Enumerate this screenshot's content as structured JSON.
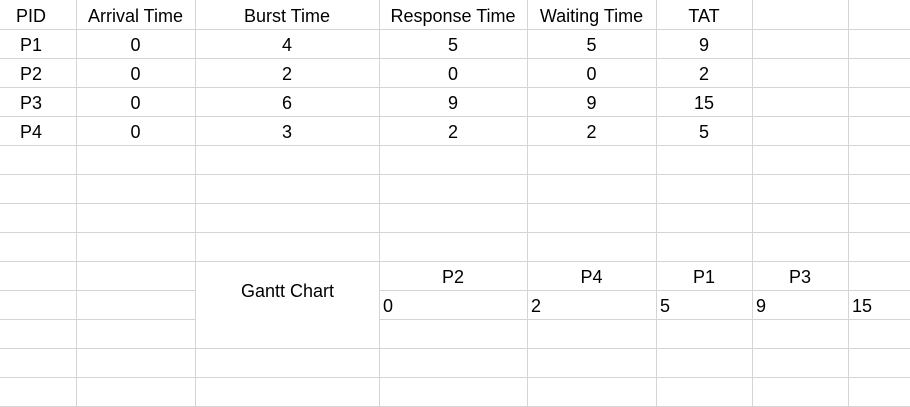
{
  "table": {
    "headers": [
      "PID",
      "Arrival Time",
      "Burst Time",
      "Response Time",
      "Waiting Time",
      "TAT"
    ],
    "rows": [
      [
        "P1",
        "0",
        "4",
        "5",
        "5",
        "9"
      ],
      [
        "P2",
        "0",
        "2",
        "0",
        "0",
        "2"
      ],
      [
        "P3",
        "0",
        "6",
        "9",
        "9",
        "15"
      ],
      [
        "P4",
        "0",
        "3",
        "2",
        "2",
        "5"
      ]
    ]
  },
  "gantt": {
    "label": "Gantt Chart",
    "processes": [
      "P2",
      "P4",
      "P1",
      "P3"
    ],
    "times": [
      "0",
      "2",
      "5",
      "9",
      "15"
    ]
  }
}
